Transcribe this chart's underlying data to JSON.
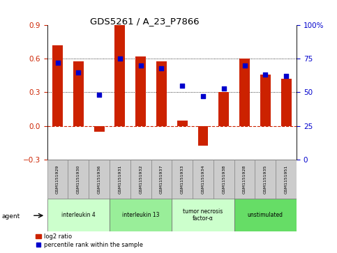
{
  "title": "GDS5261 / A_23_P7866",
  "samples": [
    "GSM1151929",
    "GSM1151930",
    "GSM1151936",
    "GSM1151931",
    "GSM1151932",
    "GSM1151937",
    "GSM1151933",
    "GSM1151934",
    "GSM1151938",
    "GSM1151928",
    "GSM1151935",
    "GSM1151951"
  ],
  "log2_ratio": [
    0.72,
    0.58,
    -0.05,
    0.9,
    0.62,
    0.58,
    0.05,
    -0.18,
    0.3,
    0.6,
    0.46,
    0.42
  ],
  "percentile": [
    72,
    65,
    48,
    75,
    70,
    68,
    55,
    47,
    53,
    70,
    63,
    62
  ],
  "groups": [
    {
      "label": "interleukin 4",
      "start": 0,
      "end": 3,
      "color": "#ccffcc"
    },
    {
      "label": "interleukin 13",
      "start": 3,
      "end": 6,
      "color": "#99ee99"
    },
    {
      "label": "tumor necrosis\nfactor-α",
      "start": 6,
      "end": 9,
      "color": "#ccffcc"
    },
    {
      "label": "unstimulated",
      "start": 9,
      "end": 12,
      "color": "#66dd66"
    }
  ],
  "ylim_left": [
    -0.3,
    0.9
  ],
  "ylim_right": [
    0,
    100
  ],
  "yticks_left": [
    -0.3,
    0.0,
    0.3,
    0.6,
    0.9
  ],
  "yticks_right": [
    0,
    25,
    50,
    75,
    100
  ],
  "bar_color": "#cc2200",
  "dot_color": "#0000cc",
  "zero_line_color": "#cc2200",
  "bg_color": "#ffffff",
  "bar_width": 0.5,
  "legend_bar_label": "log2 ratio",
  "legend_dot_label": "percentile rank within the sample",
  "agent_label": "agent"
}
